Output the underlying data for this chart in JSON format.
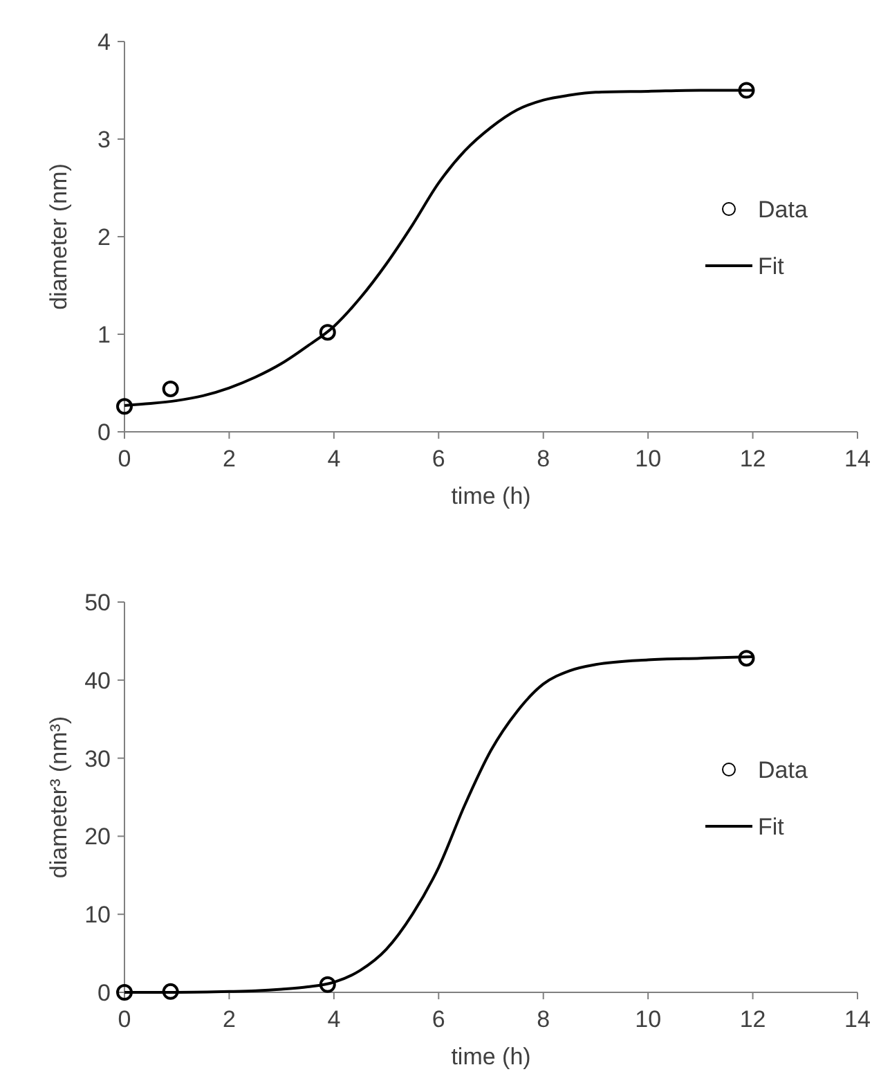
{
  "chart_data": [
    {
      "type": "line",
      "xlabel": "time (h)",
      "ylabel": "diameter (nm)",
      "xlim": [
        0,
        14
      ],
      "ylim": [
        0,
        4
      ],
      "xticks": [
        0,
        2,
        4,
        6,
        8,
        10,
        12,
        14
      ],
      "yticks": [
        0,
        1,
        2,
        3,
        4
      ],
      "legend": "right",
      "line_style": "solid",
      "series": [
        {
          "name": "Data",
          "type": "scatter",
          "marker": "circle",
          "color": "#000000",
          "x": [
            0,
            0.88,
            3.88,
            11.88
          ],
          "values": [
            0.26,
            0.44,
            1.02,
            3.5
          ]
        },
        {
          "name": "Fit",
          "color": "#000000",
          "x": [
            0,
            0.5,
            1,
            1.5,
            2,
            2.5,
            3,
            3.5,
            4,
            4.5,
            5,
            5.5,
            6,
            6.5,
            7,
            7.5,
            8,
            8.5,
            9,
            10,
            11,
            12
          ],
          "values": [
            0.27,
            0.29,
            0.32,
            0.37,
            0.45,
            0.56,
            0.7,
            0.88,
            1.08,
            1.37,
            1.72,
            2.12,
            2.55,
            2.88,
            3.12,
            3.3,
            3.4,
            3.45,
            3.48,
            3.49,
            3.5,
            3.5
          ]
        }
      ]
    },
    {
      "type": "line",
      "xlabel": "time (h)",
      "ylabel": "diameter³ (nm³)",
      "xlim": [
        0,
        14
      ],
      "ylim": [
        0,
        50
      ],
      "xticks": [
        0,
        2,
        4,
        6,
        8,
        10,
        12,
        14
      ],
      "yticks": [
        0,
        10,
        20,
        30,
        40,
        50
      ],
      "legend": "right",
      "line_style": "solid",
      "series": [
        {
          "name": "Data",
          "type": "scatter",
          "marker": "circle",
          "color": "#000000",
          "x": [
            0,
            0.88,
            3.88,
            11.88
          ],
          "values": [
            0,
            0.1,
            1,
            42.8
          ]
        },
        {
          "name": "Fit",
          "color": "#000000",
          "x": [
            0,
            1,
            2,
            2.5,
            3,
            3.5,
            4,
            4.5,
            5,
            5.5,
            6,
            6.5,
            7,
            7.5,
            8,
            8.5,
            9,
            10,
            11,
            12
          ],
          "values": [
            0,
            0,
            0.1,
            0.2,
            0.4,
            0.7,
            1.3,
            2.8,
            5.5,
            10,
            16,
            24,
            31,
            36,
            39.5,
            41.2,
            42,
            42.6,
            42.8,
            43
          ]
        }
      ]
    }
  ]
}
